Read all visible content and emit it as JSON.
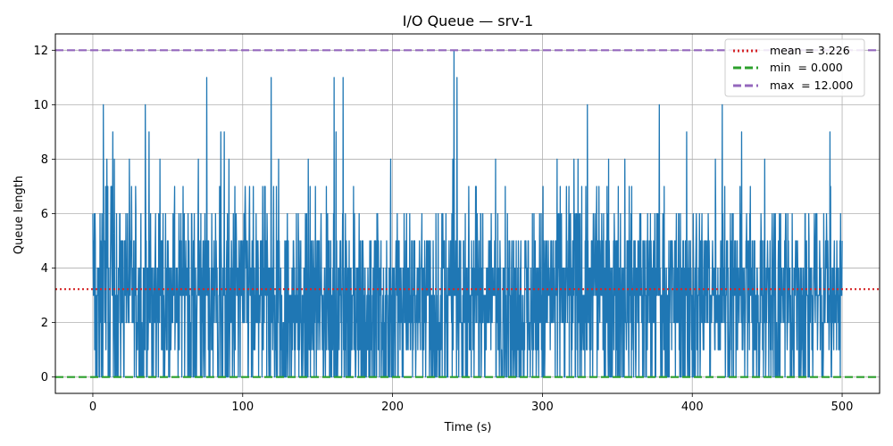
{
  "chart_data": {
    "type": "line",
    "title": "I/O Queue — srv-1",
    "xlabel": "Time (s)",
    "ylabel": "Queue length",
    "xlim": [
      -25,
      525
    ],
    "ylim": [
      -0.6,
      12.6
    ],
    "xticks": [
      0,
      100,
      200,
      300,
      400,
      500
    ],
    "yticks": [
      0,
      2,
      4,
      6,
      8,
      10,
      12
    ],
    "grid": true,
    "legend_position": "top-right",
    "series": [
      {
        "color": "#1f77b4",
        "x_range": [
          0,
          500
        ],
        "y_min": 0,
        "y_max": 12,
        "note_points": [
          {
            "x": 0,
            "y": 6
          },
          {
            "x": 7,
            "y": 10
          },
          {
            "x": 35,
            "y": 10
          },
          {
            "x": 76,
            "y": 11
          },
          {
            "x": 119,
            "y": 11
          },
          {
            "x": 121,
            "y": 2
          },
          {
            "x": 161,
            "y": 11
          },
          {
            "x": 167,
            "y": 11
          },
          {
            "x": 241,
            "y": 12
          },
          {
            "x": 243,
            "y": 11
          },
          {
            "x": 330,
            "y": 10
          },
          {
            "x": 378,
            "y": 10
          },
          {
            "x": 420,
            "y": 10
          },
          {
            "x": 500,
            "y": 5
          }
        ]
      }
    ],
    "reference_lines": [
      {
        "label": "mean = 3.226",
        "value": 3.226,
        "color": "#d62728",
        "style": "dotted"
      },
      {
        "label": "min  = 0.000",
        "value": 0.0,
        "color": "#2ca02c",
        "style": "dashed"
      },
      {
        "label": "max  = 12.000",
        "value": 12.0,
        "color": "#9467bd",
        "style": "dashed"
      }
    ]
  }
}
